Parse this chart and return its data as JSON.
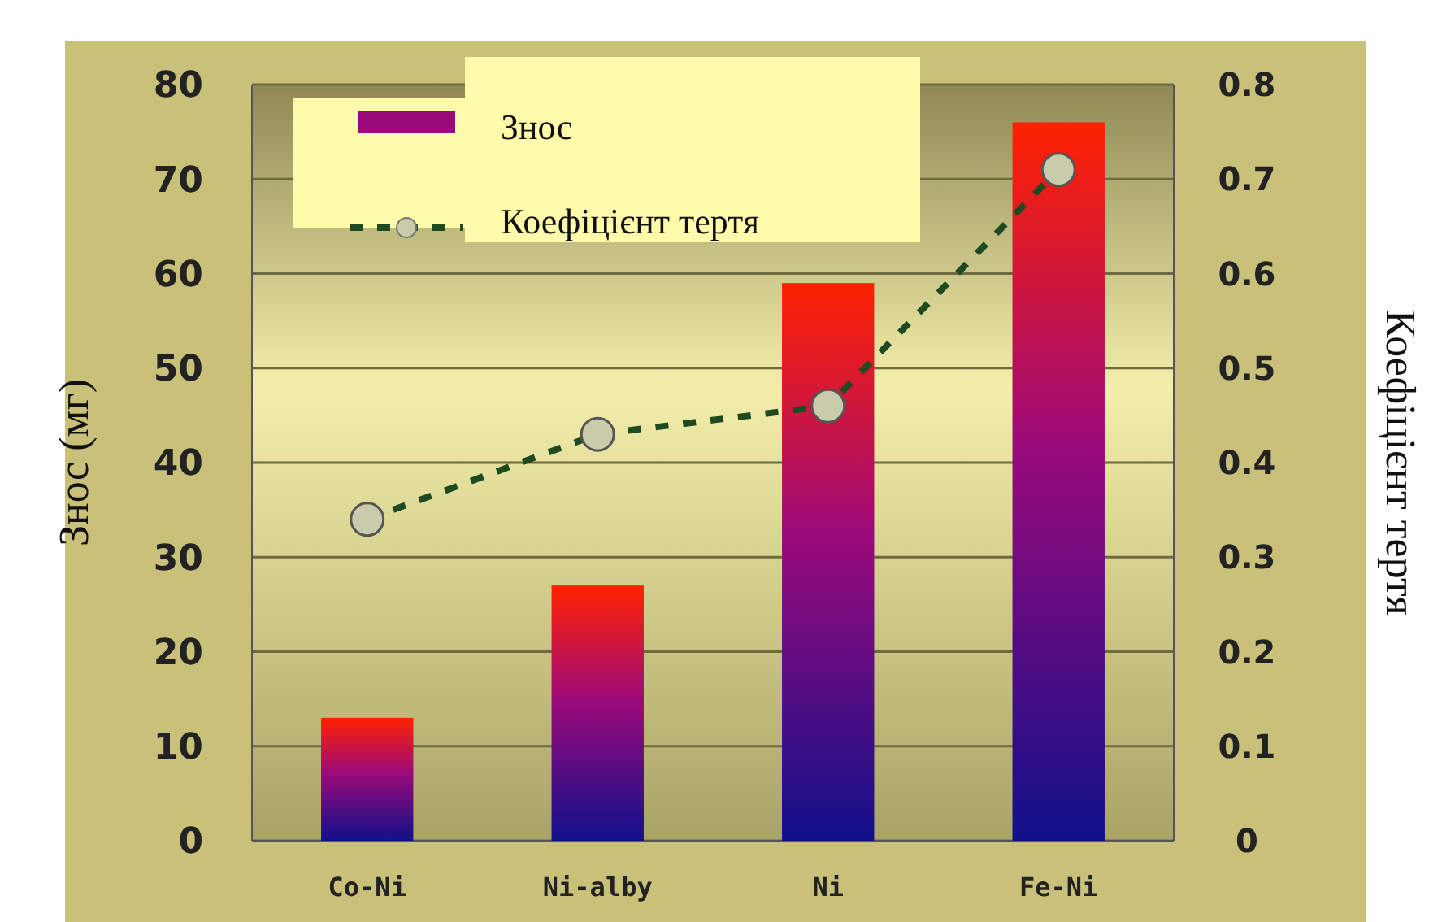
{
  "chart_data": {
    "type": "bar",
    "ylabel": "Знос (мг)",
    "y2label": "Коефіцієнт тертя",
    "categories": [
      "Co-Ni",
      "Ni-alby",
      "Ni",
      "Fe-Ni"
    ],
    "series": [
      {
        "name": "Знос",
        "color": "#9b0a7a",
        "values": [
          13,
          27,
          59,
          76
        ]
      },
      {
        "name": "Коефіцієнт тертя",
        "type": "line",
        "axis": "y2",
        "color": "#1f4a1f",
        "values": [
          0.34,
          0.43,
          0.46,
          0.71
        ],
        "marker": "circle",
        "line_style": "dashed"
      }
    ],
    "ylim": [
      0,
      80
    ],
    "yticks": [
      0,
      10,
      20,
      30,
      40,
      50,
      60,
      70,
      80
    ],
    "y2lim": [
      0,
      0.8
    ],
    "y2ticks": [
      0,
      0.1,
      0.2,
      0.3,
      0.4,
      0.5,
      0.6,
      0.7,
      0.8
    ],
    "grid": "y",
    "legend": "top left"
  }
}
